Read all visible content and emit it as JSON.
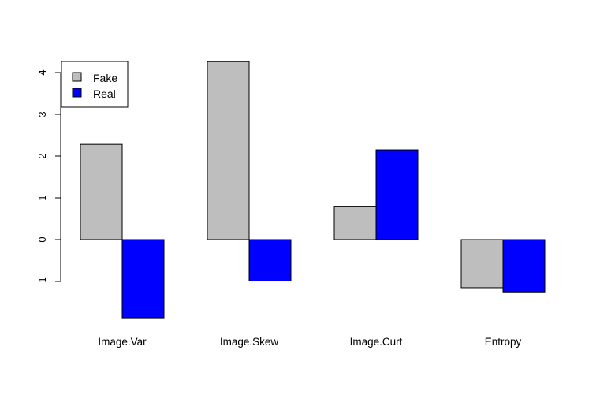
{
  "chart_data": {
    "type": "bar",
    "categories": [
      "Image.Var",
      "Image.Skew",
      "Image.Curt",
      "Entropy"
    ],
    "series": [
      {
        "name": "Fake",
        "color": "#bebebe",
        "values": [
          2.28,
          4.26,
          0.8,
          -1.15
        ]
      },
      {
        "name": "Real",
        "color": "#0000ff",
        "values": [
          -1.87,
          -0.99,
          2.15,
          -1.25
        ]
      }
    ],
    "yticks": [
      -1,
      0,
      1,
      2,
      3,
      4
    ],
    "ylim": [
      -1.87,
      4.26
    ],
    "grid": false,
    "legend_position": "top-left",
    "title": "",
    "xlabel": "",
    "ylabel": ""
  }
}
